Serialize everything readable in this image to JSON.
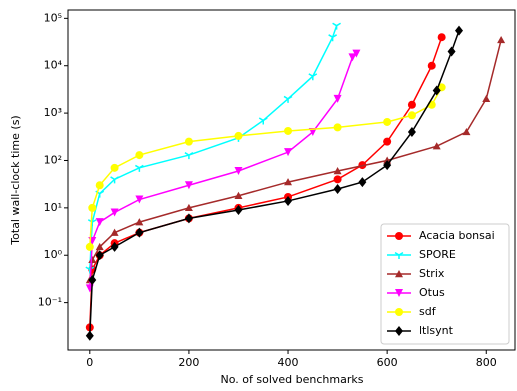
{
  "chart_data": {
    "type": "line",
    "xlabel": "No. of solved benchmarks",
    "ylabel": "Total wall-clock time (s)",
    "xlim": [
      -44,
      858
    ],
    "xticks": [
      0,
      200,
      400,
      600,
      800
    ],
    "ylim": [
      0.01,
      150000
    ],
    "yticks": [
      {
        "value": 0.1,
        "label": "10⁻¹"
      },
      {
        "value": 1,
        "label": "10⁰"
      },
      {
        "value": 10,
        "label": "10¹"
      },
      {
        "value": 100,
        "label": "10²"
      },
      {
        "value": 1000,
        "label": "10³"
      },
      {
        "value": 10000,
        "label": "10⁴"
      },
      {
        "value": 100000,
        "label": "10⁵"
      }
    ],
    "log_y": true,
    "legend": "lower right",
    "series": [
      {
        "name": "Acacia bonsai",
        "color": "#ff0000",
        "marker": "circle",
        "x": [
          0,
          5,
          20,
          50,
          100,
          200,
          300,
          400,
          500,
          550,
          600,
          650,
          690,
          710
        ],
        "values": [
          0.03,
          0.5,
          1,
          1.8,
          3,
          6,
          10,
          17,
          40,
          80,
          250,
          1500,
          10000,
          40000
        ]
      },
      {
        "name": "SPORE",
        "color": "#00ffff",
        "marker": "tri_down",
        "x": [
          0,
          5,
          20,
          50,
          100,
          200,
          300,
          350,
          400,
          450,
          490,
          498
        ],
        "values": [
          0.5,
          5,
          20,
          40,
          70,
          130,
          300,
          700,
          2000,
          6000,
          40000,
          70000
        ]
      },
      {
        "name": "Strix",
        "color": "#a52a2a",
        "marker": "star",
        "x": [
          0,
          5,
          20,
          50,
          100,
          200,
          300,
          400,
          500,
          600,
          700,
          760,
          800,
          830
        ],
        "values": [
          0.3,
          0.8,
          1.5,
          3,
          5,
          10,
          18,
          35,
          60,
          100,
          200,
          400,
          2000,
          35000
        ]
      },
      {
        "name": "Otus",
        "color": "#ff00ff",
        "marker": "triangle_down",
        "x": [
          0,
          5,
          20,
          50,
          100,
          200,
          300,
          400,
          450,
          500,
          530,
          538
        ],
        "values": [
          0.2,
          2,
          5,
          8,
          15,
          30,
          60,
          150,
          400,
          2000,
          15000,
          18000
        ]
      },
      {
        "name": "sdf",
        "color": "#ffff00",
        "marker": "circle",
        "x": [
          0,
          5,
          20,
          50,
          100,
          200,
          300,
          400,
          500,
          600,
          650,
          690,
          710
        ],
        "values": [
          1.5,
          10,
          30,
          70,
          130,
          250,
          330,
          420,
          500,
          650,
          900,
          1500,
          3500
        ]
      },
      {
        "name": "ltlsynt",
        "color": "#000000",
        "marker": "diamond",
        "x": [
          0,
          5,
          20,
          50,
          100,
          200,
          300,
          400,
          500,
          550,
          600,
          650,
          700,
          730,
          745
        ],
        "values": [
          0.02,
          0.3,
          1,
          1.5,
          3,
          6,
          9,
          14,
          25,
          35,
          80,
          400,
          3000,
          20000,
          55000
        ]
      }
    ]
  }
}
